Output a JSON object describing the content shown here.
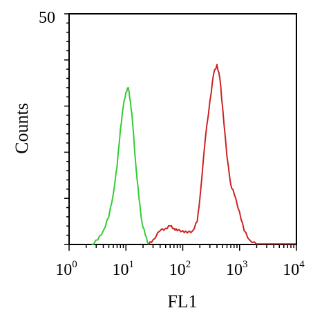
{
  "chart_data": {
    "type": "line",
    "title": "",
    "xlabel": "FL1",
    "ylabel": "Counts",
    "xscale": "log",
    "xlim": [
      1,
      10000
    ],
    "ylim": [
      0,
      50
    ],
    "x_ticks": [
      {
        "base": "10",
        "exp": "0"
      },
      {
        "base": "10",
        "exp": "1"
      },
      {
        "base": "10",
        "exp": "2"
      },
      {
        "base": "10",
        "exp": "3"
      },
      {
        "base": "10",
        "exp": "4"
      }
    ],
    "y_tick_labels": [
      "50"
    ],
    "grid": false,
    "legend": "none",
    "series": [
      {
        "color": "#33cc33",
        "x": [
          2.5,
          3.2,
          4.0,
          5.0,
          6.0,
          7.0,
          8.0,
          9.0,
          10.0,
          11.0,
          12.0,
          13.0,
          15.0,
          17.0,
          19.0,
          22.0,
          25.0
        ],
        "y": [
          0,
          1,
          3,
          6,
          11,
          17,
          25,
          30,
          33,
          34,
          31,
          27,
          17,
          10,
          5,
          2,
          0
        ]
      },
      {
        "color": "#cc2222",
        "x": [
          25,
          30,
          40,
          50,
          60,
          70,
          80,
          100,
          120,
          150,
          180,
          200,
          250,
          300,
          350,
          400,
          450,
          500,
          600,
          700,
          800,
          1000,
          1200,
          1500,
          2000
        ],
        "y": [
          0,
          1,
          3,
          3.5,
          4,
          3.5,
          3,
          3,
          2.5,
          3,
          5,
          10,
          23,
          31,
          37,
          39,
          36,
          30,
          19,
          13,
          11,
          7,
          3,
          1,
          0
        ]
      }
    ]
  }
}
